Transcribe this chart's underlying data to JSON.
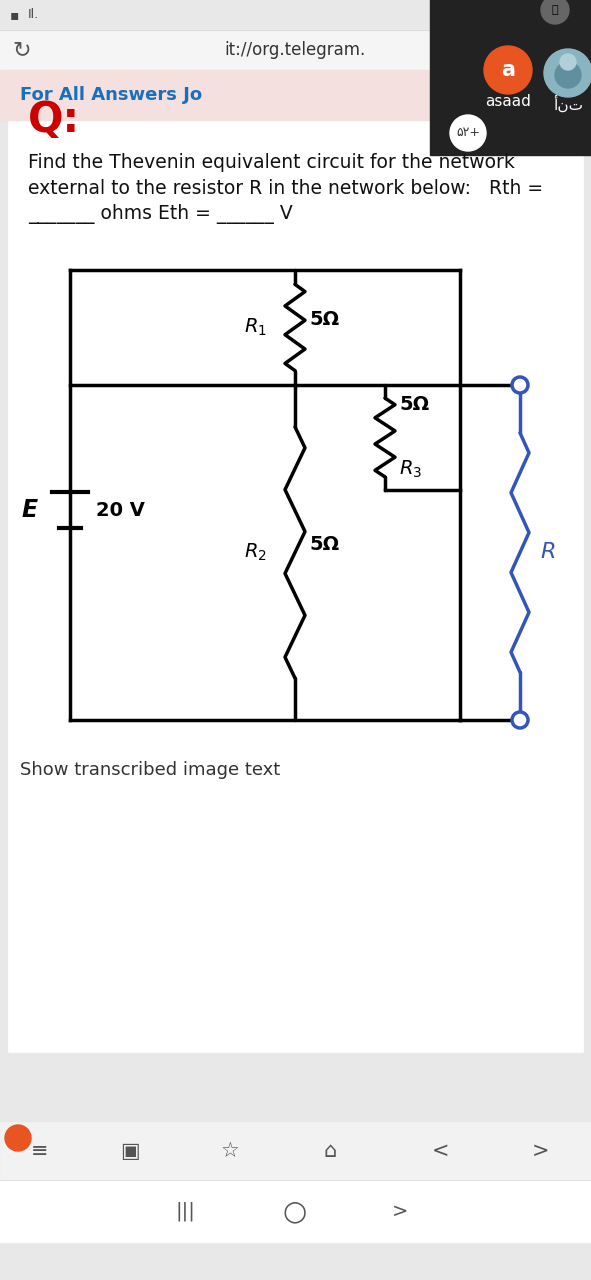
{
  "bg_color": "#e8e8e8",
  "page_bg": "#ffffff",
  "status_bar_bg": "#e8e8e8",
  "url_bar_bg": "#f0f0f0",
  "url_text": "it://org.telegram.",
  "chat_header_bg": "#f5e0e0",
  "chat_header_text": "For All Answers Jo",
  "chat_header_color": "#1a6fbd",
  "video_overlay_bg": "#222222",
  "orange_circle_color": "#e85520",
  "circle_label": "a",
  "name_label": "asaad",
  "arabic_label": "أنت",
  "counter_label": "۵۲+",
  "q_color": "#cc0000",
  "q_text": "Q:",
  "question_line1": "Find the Thevenin equivalent circuit for the network",
  "question_line2": "external to the resistor R in the network below:   Rth =",
  "question_line3": "_______ ohms Eth = ______ V",
  "R1_label": "$R_1$",
  "R1_value": "5Ω",
  "R2_label": "$R_2$",
  "R2_value": "5Ω",
  "R3_label": "$R_3$",
  "R3_value": "5Ω",
  "E_label": "E",
  "E_value": "20 V",
  "R_label": "R",
  "R_color": "#3355bb",
  "show_text": "Show transcribed image text",
  "bottom_bar_bg": "#f0f0f0",
  "nav_bar_bg": "#ffffff"
}
